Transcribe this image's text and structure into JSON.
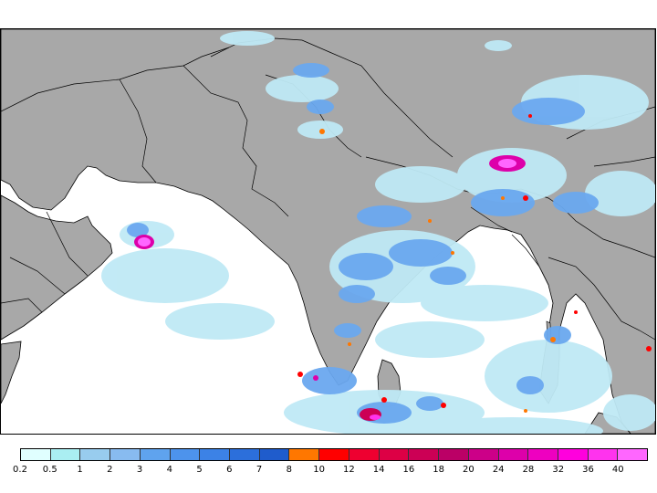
{
  "legend": {
    "labels": [
      "0.2",
      "0.5",
      "1",
      "2",
      "3",
      "4",
      "5",
      "6",
      "7",
      "8",
      "10",
      "12",
      "14",
      "16",
      "18",
      "20",
      "24",
      "28",
      "32",
      "36",
      "40"
    ],
    "colors": [
      "#e0ffff",
      "#aaeef2",
      "#98ccee",
      "#88bbf0",
      "#5fa3ee",
      "#4d93ec",
      "#3c82e6",
      "#2c6fdb",
      "#1f5ccc",
      "#ff7700",
      "#ff0000",
      "#ee0030",
      "#dd0045",
      "#cc0055",
      "#bb0066",
      "#cc0088",
      "#dd00aa",
      "#ee00c0",
      "#ff00dd",
      "#ff33ee",
      "#ff66ff"
    ]
  },
  "map": {
    "land_color": "#a8a8a8",
    "ocean_color": "#ffffff",
    "border_color": "#000000"
  }
}
